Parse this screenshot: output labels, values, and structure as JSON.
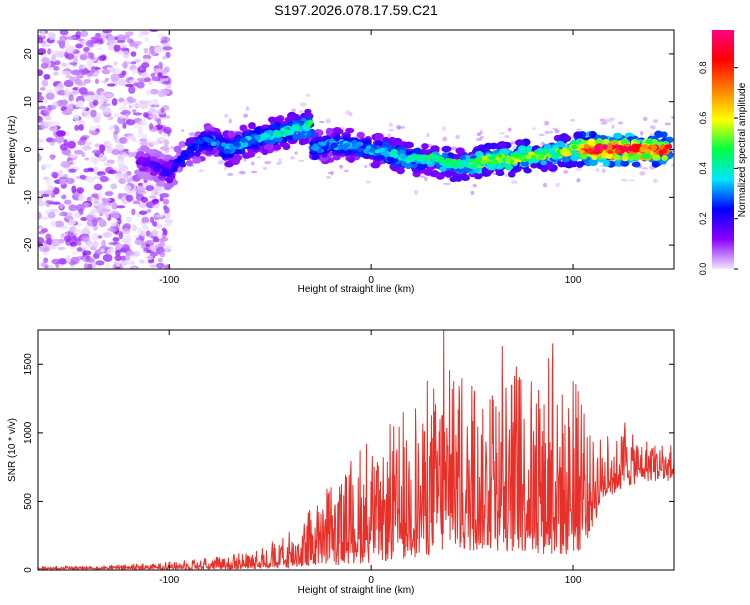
{
  "title": "S197.2026.078.17.59.C21",
  "chart_data": [
    {
      "type": "heatmap",
      "xlabel": "Height of straight line (km)",
      "ylabel": "Frequency (Hz)",
      "xlim": [
        -165,
        150
      ],
      "ylim": [
        -25,
        25
      ],
      "xticks": [
        -100,
        0,
        100
      ],
      "yticks": [
        -20,
        -10,
        0,
        10,
        20
      ],
      "colorbar": {
        "label": "Normalized spectral amplitude",
        "range": [
          0,
          0.95
        ],
        "ticks": [
          "0.0",
          "0.2",
          "0.4",
          "0.6",
          "0.8"
        ],
        "colors": [
          "#f0e6ff",
          "#8a00ff",
          "#0000ff",
          "#00e5ff",
          "#00ff40",
          "#ffff00",
          "#ff8000",
          "#ff0000",
          "#ff0080"
        ]
      },
      "ridge": {
        "x": [
          -115,
          -100,
          -90,
          -80,
          -70,
          -60,
          -50,
          -40,
          -30,
          -29,
          -20,
          -10,
          0,
          10,
          20,
          30,
          40,
          50,
          60,
          70,
          80,
          90,
          100,
          110,
          120,
          130,
          140,
          148
        ],
        "freq": [
          -2,
          -5,
          0,
          2,
          0,
          2,
          3,
          4,
          5,
          0,
          1,
          1,
          0,
          -1,
          -2,
          -2,
          -3,
          -3,
          -2,
          -2,
          -1,
          -1,
          0,
          0,
          0,
          0,
          0,
          0
        ],
        "amplitude": [
          0.15,
          0.2,
          0.25,
          0.3,
          0.35,
          0.35,
          0.38,
          0.4,
          0.45,
          0.3,
          0.33,
          0.35,
          0.35,
          0.4,
          0.42,
          0.45,
          0.45,
          0.5,
          0.55,
          0.55,
          0.55,
          0.5,
          0.6,
          0.92,
          0.95,
          0.92,
          0.85,
          0.8
        ]
      }
    },
    {
      "type": "line",
      "xlabel": "Height of straight line (km)",
      "ylabel": "SNR (10 * v/v)",
      "xlim": [
        -165,
        150
      ],
      "ylim": [
        0,
        1750
      ],
      "xticks": [
        -100,
        0,
        100
      ],
      "yticks": [
        0,
        500,
        1000,
        1500
      ],
      "color": "#e8302a",
      "envelope": {
        "x": [
          -165,
          -120,
          -80,
          -60,
          -45,
          -35,
          -25,
          -15,
          -5,
          5,
          15,
          25,
          35,
          45,
          55,
          65,
          75,
          85,
          95,
          105,
          115,
          125,
          135,
          145,
          150
        ],
        "upper": [
          25,
          40,
          90,
          140,
          230,
          350,
          580,
          700,
          900,
          1000,
          1150,
          1300,
          1650,
          1400,
          1450,
          1300,
          1550,
          1300,
          1650,
          1250,
          1000,
          1100,
          1050,
          950,
          900
        ],
        "lower": [
          5,
          5,
          5,
          10,
          10,
          20,
          30,
          40,
          50,
          60,
          80,
          100,
          120,
          130,
          150,
          140,
          130,
          120,
          100,
          150,
          500,
          600,
          650,
          650,
          650
        ]
      },
      "peaks": [
        {
          "x": 36,
          "y": 1750
        },
        {
          "x": 65,
          "y": 1630
        },
        {
          "x": 90,
          "y": 1650
        },
        {
          "x": 88,
          "y": 1540
        },
        {
          "x": 72,
          "y": 1480
        },
        {
          "x": 31,
          "y": 1320
        }
      ]
    }
  ]
}
